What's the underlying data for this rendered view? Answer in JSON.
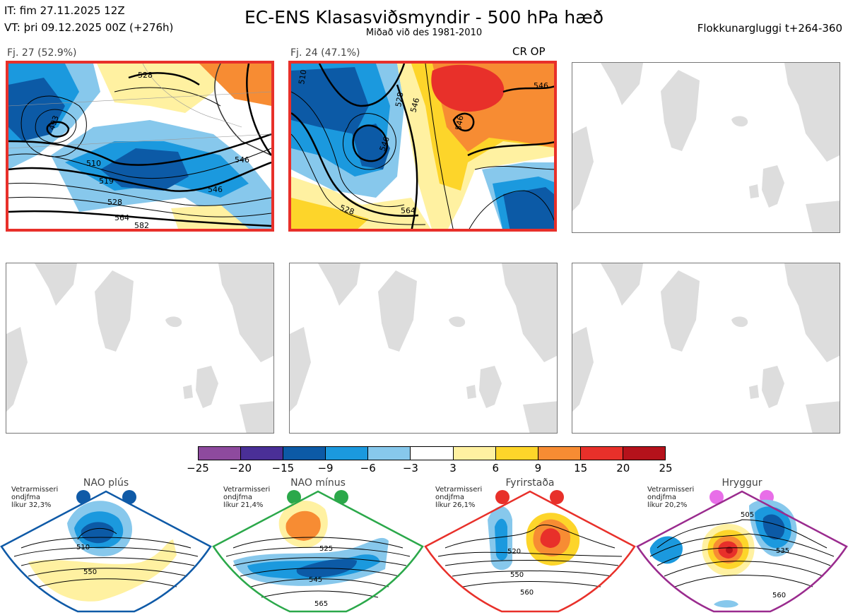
{
  "header": {
    "it_line": "IT: fim 27.11.2025 12Z",
    "vt_line": "VT: þri 09.12.2025 00Z  (+276h)",
    "title": "EC-ENS Klasasviðsmyndir - 500 hPa hæð",
    "subtitle": "Miðað við des 1981-2010",
    "window": "Flokkunargluggi t+264-360"
  },
  "panels": [
    {
      "label": "Fj. 27 (52.9%)",
      "contours": [
        "528",
        "493",
        "510",
        "519",
        "528",
        "546",
        "546",
        "564",
        "582"
      ]
    },
    {
      "label": "Fj. 24 (47.1%)",
      "tag": "CR OP",
      "contours": [
        "510",
        "546",
        "546",
        "528",
        "546",
        "564",
        "528",
        "546"
      ]
    }
  ],
  "colorbar": {
    "colors": [
      "#8e4a9e",
      "#4a2f97",
      "#0c5aa6",
      "#1b99de",
      "#87c8ec",
      "#ffffff",
      "#fff1a1",
      "#fdd52a",
      "#f78c33",
      "#e8302a",
      "#b5121b"
    ],
    "ticks": [
      "−25",
      "−20",
      "−15",
      "−9",
      "−6",
      "−3",
      "3",
      "6",
      "9",
      "15",
      "20",
      "25"
    ]
  },
  "regimes": [
    {
      "name": "NAO plús",
      "l1": "Vetrarmisseri",
      "l2": "ondjfma",
      "l3": "líkur 32,3%",
      "color": "#0f5aa7",
      "labels": [
        "510",
        "550"
      ]
    },
    {
      "name": "NAO mínus",
      "l1": "Vetrarmisseri",
      "l2": "ondjfma",
      "l3": "líkur 21,4%",
      "color": "#2ba84a",
      "labels": [
        "525",
        "545",
        "565"
      ]
    },
    {
      "name": "Fyrirstaða",
      "l1": "Vetrarmisseri",
      "l2": "ondjfma",
      "l3": "líkur 26,1%",
      "color": "#e8302a",
      "labels": [
        "520",
        "550",
        "560"
      ]
    },
    {
      "name": "Hryggur",
      "l1": "Vetrarmisseri",
      "l2": "ondjfma",
      "l3": "líkur 20,2%",
      "color": "#9a2b8e",
      "labels": [
        "505",
        "535",
        "560"
      ]
    }
  ]
}
